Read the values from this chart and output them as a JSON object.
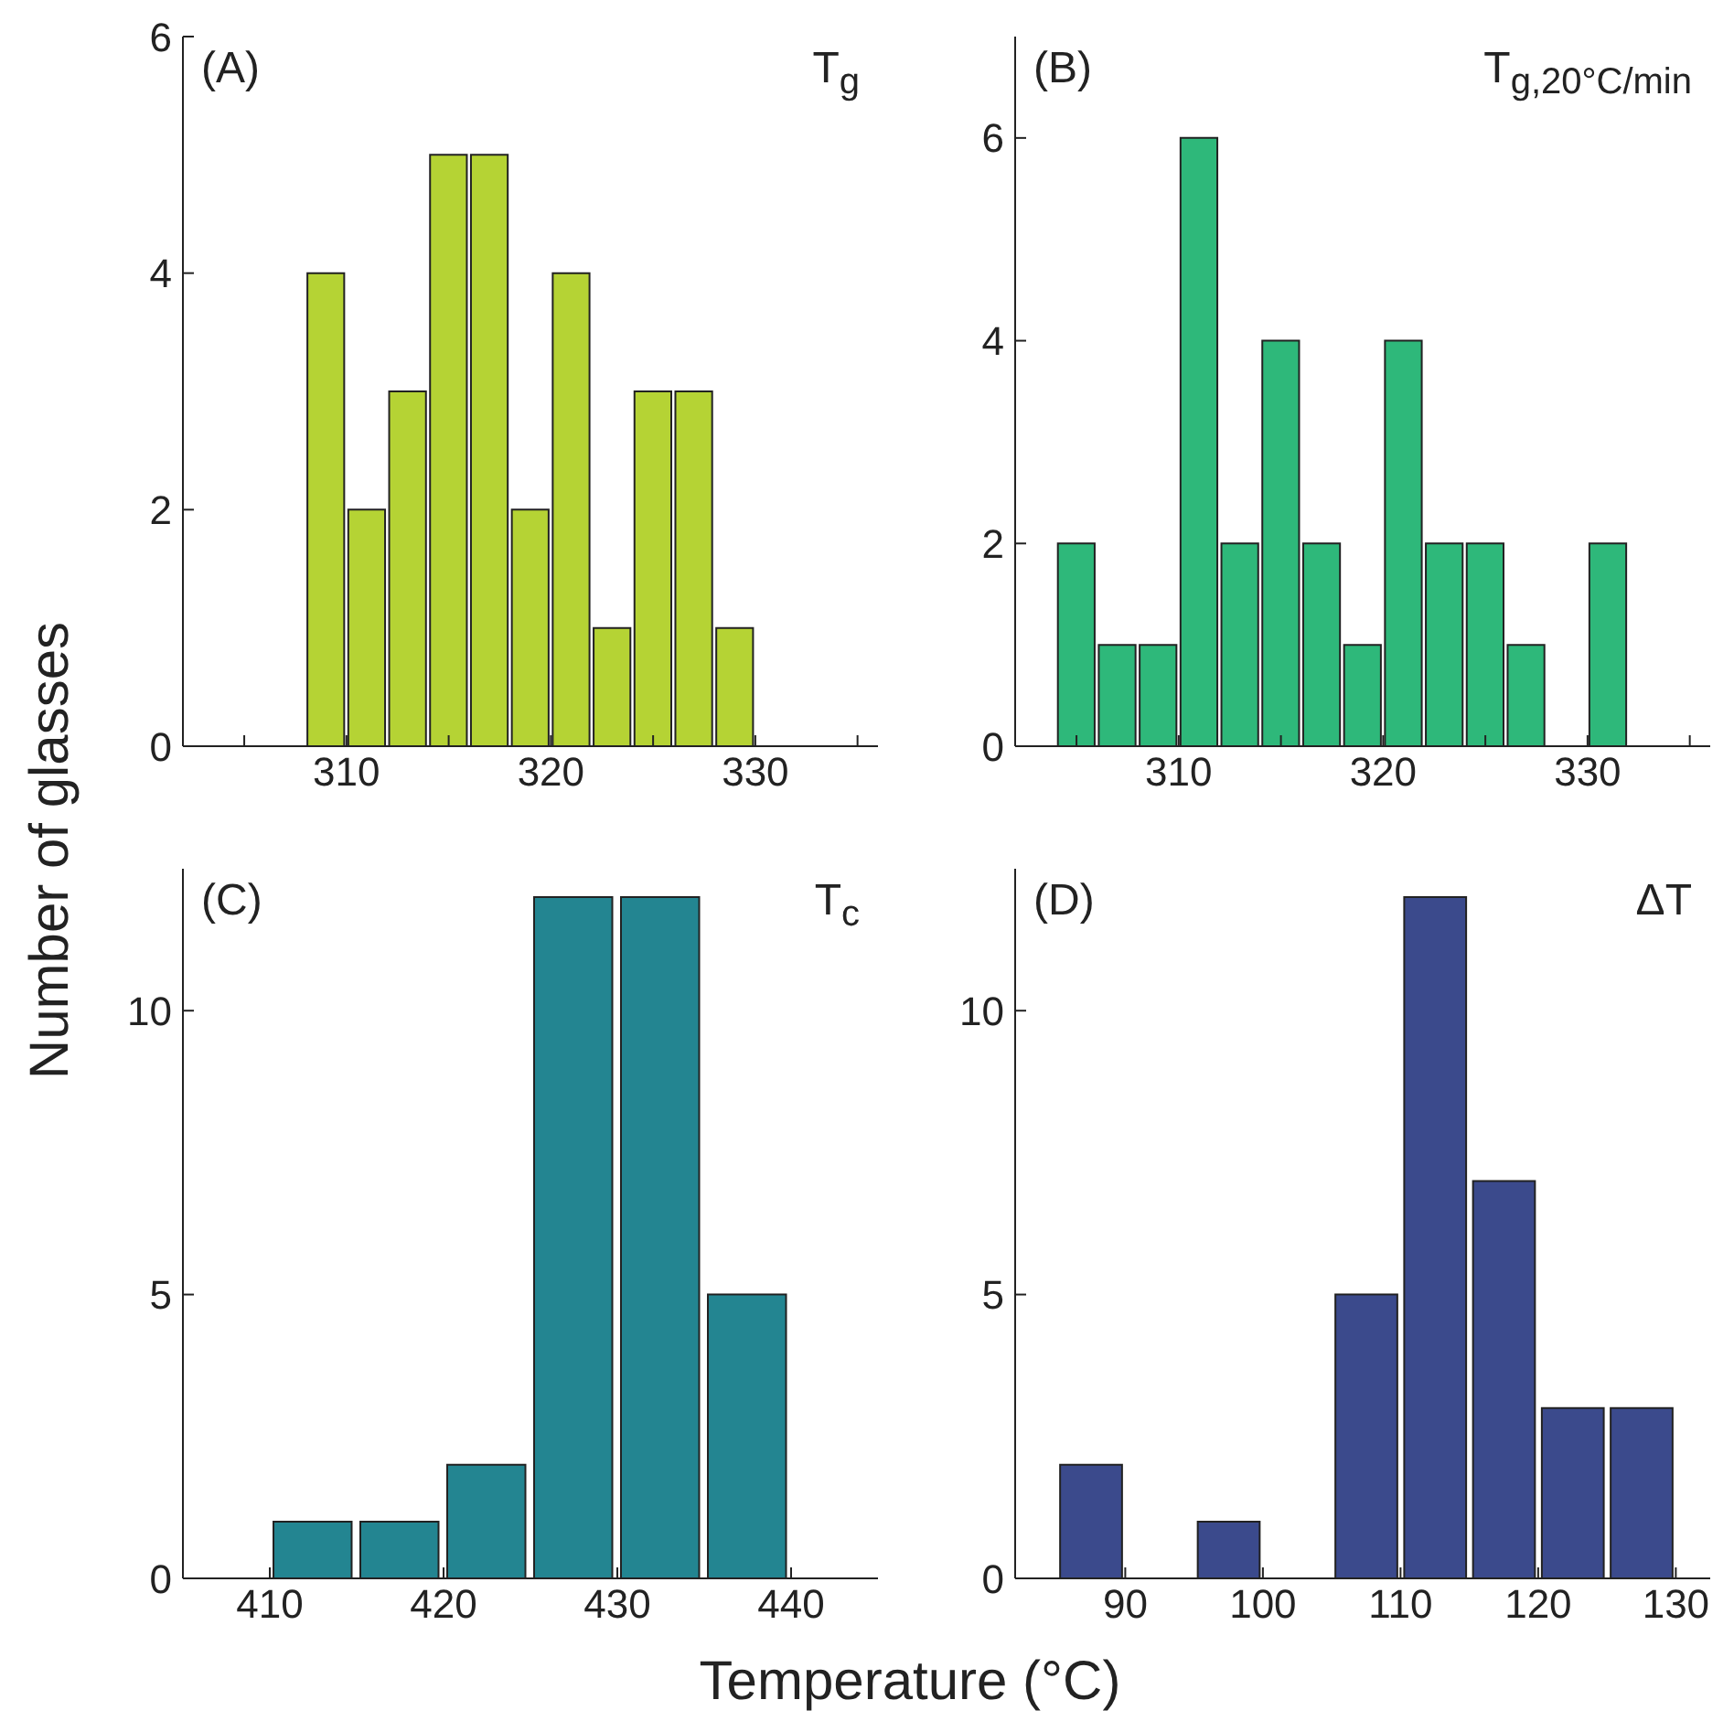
{
  "chart_data": [
    {
      "type": "histogram",
      "annotations": [
        "(A)",
        "T$_{g}$"
      ],
      "ylabel": "Number of glasses",
      "bins": [
        308,
        310,
        312,
        314,
        316,
        318,
        320,
        322,
        324,
        326,
        328,
        330
      ],
      "values": [
        4,
        2,
        3,
        5,
        5,
        2,
        4,
        1,
        3,
        3,
        1
      ],
      "color": "#b5d334",
      "xlim": [
        302,
        336
      ],
      "xticks": [
        {
          "value": 305,
          "label": null
        },
        310,
        {
          "value": 315,
          "label": null
        },
        320,
        {
          "value": 325,
          "label": null
        },
        330,
        {
          "value": 335,
          "label": null
        }
      ],
      "ylim": [
        0,
        6
      ],
      "yticks": [
        0,
        2,
        4,
        6
      ],
      "grid": false,
      "legend": false
    },
    {
      "type": "histogram",
      "annotations": [
        "(B)",
        "T$_{g,20°C/min}$"
      ],
      "bins": [
        304,
        306,
        308,
        310,
        312,
        314,
        316,
        318,
        320,
        322,
        324,
        326,
        328,
        330,
        332
      ],
      "values": [
        2,
        1,
        1,
        6,
        2,
        4,
        2,
        1,
        4,
        2,
        2,
        1,
        0,
        2
      ],
      "color": "#2eb87a",
      "xlim": [
        302,
        336
      ],
      "xticks": [
        {
          "value": 305,
          "label": null
        },
        310,
        {
          "value": 315,
          "label": null
        },
        320,
        {
          "value": 325,
          "label": null
        },
        330,
        {
          "value": 335,
          "label": null
        }
      ],
      "ylim": [
        0,
        7
      ],
      "yticks": [
        0,
        2,
        4,
        6
      ],
      "grid": false,
      "legend": false
    },
    {
      "type": "histogram",
      "annotations": [
        "(C)",
        "T$_{c}$"
      ],
      "xlabel": "Temperature (°C)",
      "bins": [
        410,
        415,
        420,
        425,
        430,
        435,
        440
      ],
      "values": [
        1,
        1,
        2,
        12,
        12,
        5
      ],
      "color": "#238591",
      "xlim": [
        405,
        445
      ],
      "xticks": [
        410,
        420,
        430,
        440
      ],
      "ylim": [
        0,
        12.5
      ],
      "yticks": [
        0,
        5,
        10
      ],
      "grid": false,
      "legend": false
    },
    {
      "type": "histogram",
      "annotations": [
        "(D)",
        "ΔT"
      ],
      "bins": [
        85,
        90,
        95,
        100,
        105,
        110,
        115,
        120,
        125,
        130
      ],
      "values": [
        2,
        0,
        1,
        0,
        5,
        12,
        7,
        3,
        3
      ],
      "color": "#3b4a8c",
      "xlim": [
        82,
        132.5
      ],
      "xticks": [
        90,
        100,
        110,
        120,
        130
      ],
      "ylim": [
        0,
        12.5
      ],
      "yticks": [
        0,
        5,
        10
      ],
      "grid": false,
      "legend": false
    }
  ]
}
